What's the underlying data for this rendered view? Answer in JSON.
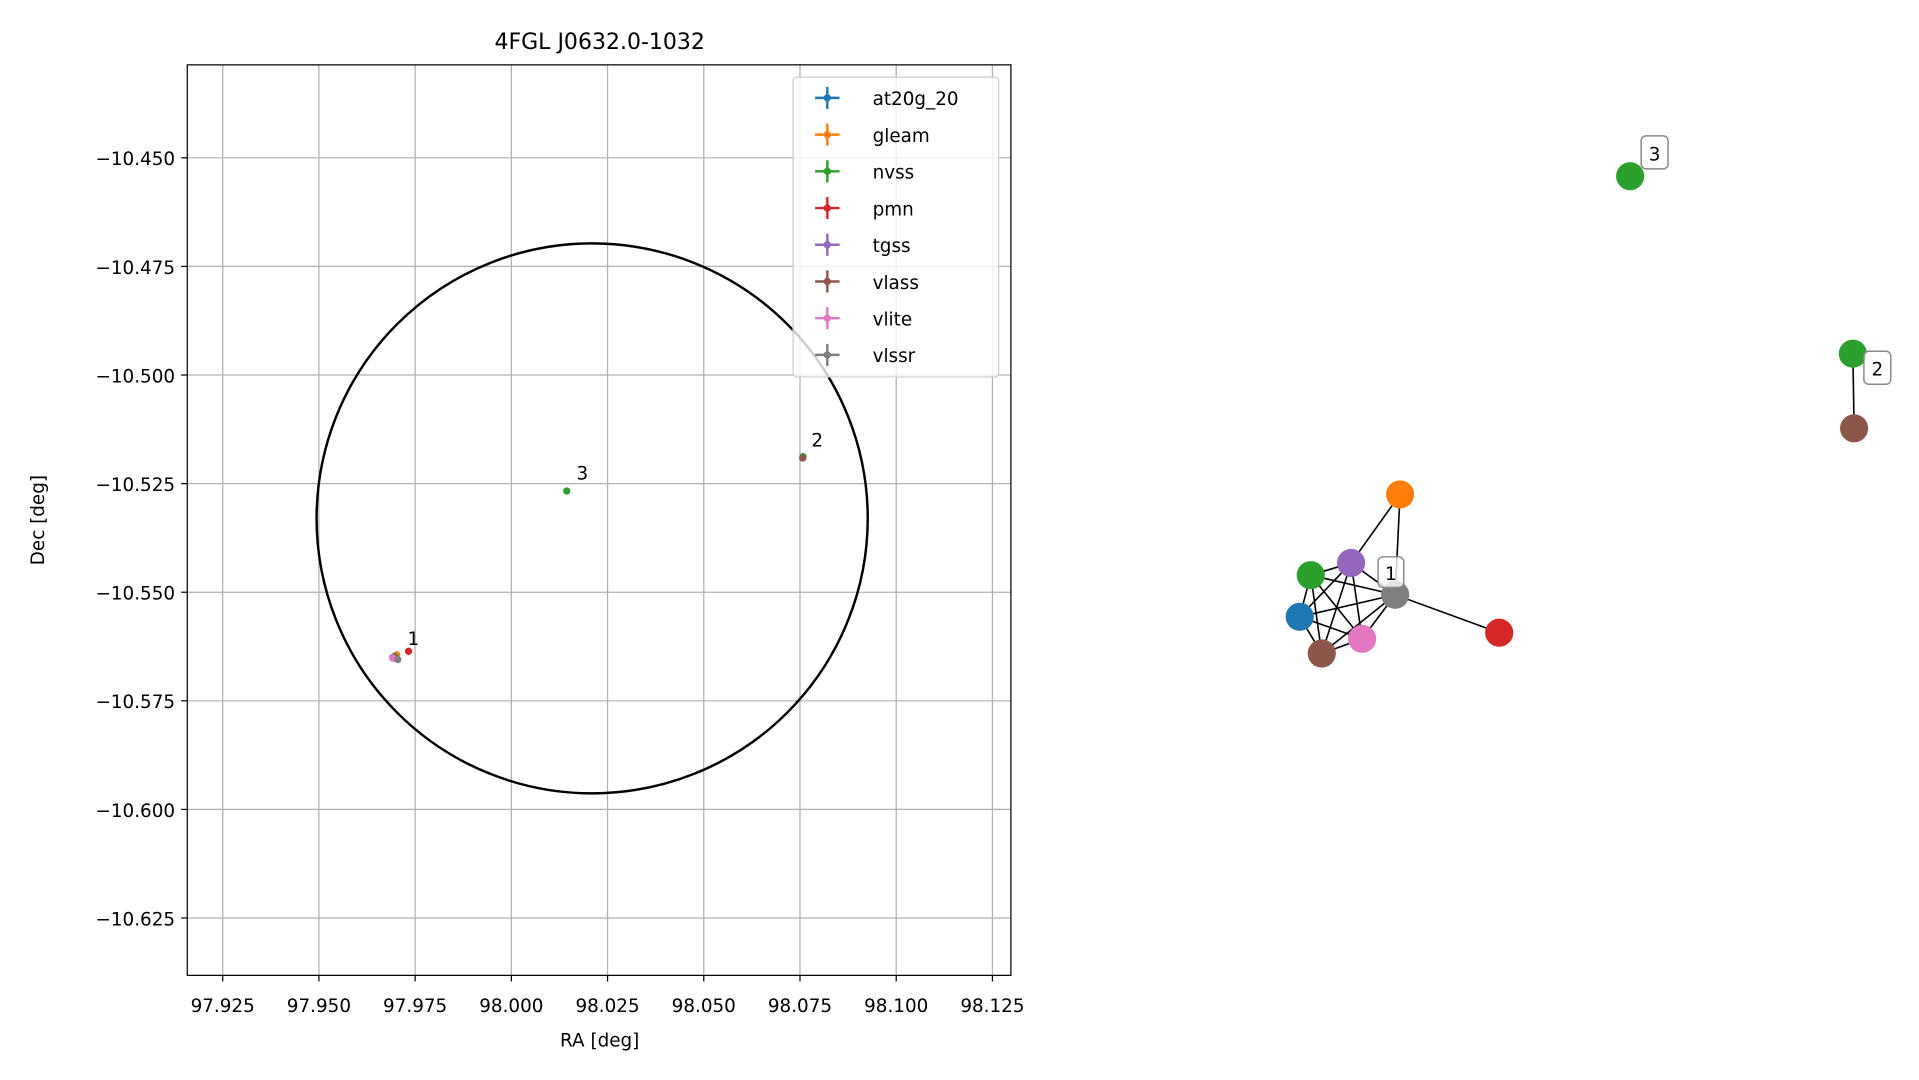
{
  "chart_data": {
    "type": "scatter",
    "title": "4FGL J0632.0-1032",
    "x_label": "RA [deg]",
    "y_label": "Dec [deg]",
    "xlim": [
      97.9158,
      98.1298
    ],
    "ylim": [
      -10.6382,
      -10.4286
    ],
    "xticks": [
      97.925,
      {
        "value": 97.95,
        "label": "97.950"
      },
      97.975,
      {
        "value": 98.0,
        "label": "98.000"
      },
      98.025,
      {
        "value": 98.05,
        "label": "98.050"
      },
      98.075,
      {
        "value": 98.1,
        "label": "98.100"
      },
      98.125
    ],
    "yticks": [
      {
        "value": -10.45,
        "label": "−10.450"
      },
      {
        "value": -10.475,
        "label": "−10.475"
      },
      {
        "value": -10.5,
        "label": "−10.500"
      },
      {
        "value": -10.525,
        "label": "−10.525"
      },
      {
        "value": -10.55,
        "label": "−10.550"
      },
      {
        "value": -10.575,
        "label": "−10.575"
      },
      {
        "value": -10.6,
        "label": "−10.600"
      },
      {
        "value": -10.625,
        "label": "−10.625"
      }
    ],
    "grid": true,
    "legend": "upper right",
    "circle": {
      "x": 98.021,
      "y": -10.533,
      "rx": 0.0716,
      "ry": 0.0633
    },
    "series": [
      {
        "name": "at20g_20",
        "color": "#1f77b4",
        "x": [
          97.9699
        ],
        "y": [
          -10.5646
        ]
      },
      {
        "name": "gleam",
        "color": "#ff7f0e",
        "x": [
          97.9702
        ],
        "y": [
          -10.5644
        ]
      },
      {
        "name": "nvss",
        "color": "#2ca02c",
        "x": [
          97.9697,
          98.0144,
          98.0758
        ],
        "y": [
          -10.5648,
          -10.5267,
          -10.5188
        ]
      },
      {
        "name": "pmn",
        "color": "#d62728",
        "x": [
          97.9733
        ],
        "y": [
          -10.5636
        ]
      },
      {
        "name": "tgss",
        "color": "#9467bd",
        "x": [
          97.9692
        ],
        "y": [
          -10.565
        ]
      },
      {
        "name": "vlass",
        "color": "#8c564b",
        "x": [
          97.9698,
          98.0757
        ],
        "y": [
          -10.5652,
          -10.5191
        ]
      },
      {
        "name": "vlite",
        "color": "#e377c2",
        "x": [
          97.9692
        ],
        "y": [
          -10.5652
        ]
      },
      {
        "name": "vlssr",
        "color": "#7f7f7f",
        "x": [
          97.9705
        ],
        "y": [
          -10.5655
        ]
      }
    ],
    "annotations": [
      "1",
      "2",
      "3"
    ]
  },
  "graph": {
    "labels": [
      "1",
      "2",
      "3"
    ]
  }
}
